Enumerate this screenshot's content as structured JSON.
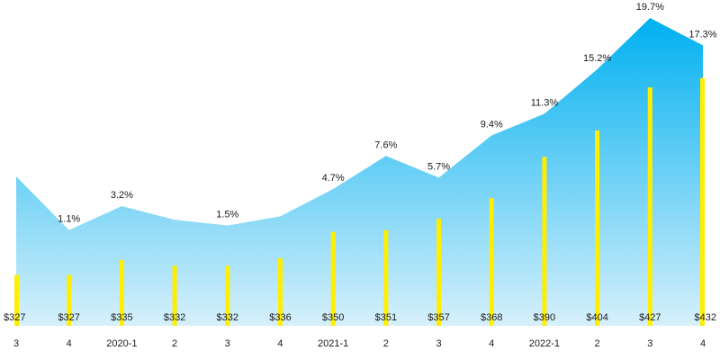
{
  "chart_data": {
    "type": "bar",
    "categories": [
      "3",
      "4",
      "2020-1",
      "2",
      "3",
      "4",
      "2021-1",
      "2",
      "3",
      "4",
      "2022-1",
      "2",
      "3",
      "4"
    ],
    "series": [
      {
        "type": "bar",
        "values": [
          327,
          327,
          335,
          332,
          332,
          336,
          350,
          351,
          357,
          368,
          390,
          404,
          427,
          432
        ],
        "value_labels": [
          "$327",
          "$327",
          "$335",
          "$332",
          "$332",
          "$336",
          "$350",
          "$351",
          "$357",
          "$368",
          "$390",
          "$404",
          "$427",
          "$432"
        ],
        "color": "#ffee00"
      },
      {
        "type": "area",
        "values": [
          null,
          1.1,
          3.2,
          null,
          1.5,
          null,
          4.7,
          7.6,
          5.7,
          9.4,
          11.3,
          15.2,
          19.7,
          17.3
        ],
        "value_labels": [
          "",
          "1.1%",
          "3.2%",
          "",
          "1.5%",
          "",
          "4.7%",
          "7.6%",
          "5.7%",
          "9.4%",
          "11.3%",
          "15.2%",
          "19.7%",
          "17.3%"
        ],
        "color_top": "#00b0f0",
        "color_bottom": "#d6f0fb"
      }
    ],
    "bar_ylim": [
      300,
      440
    ],
    "area_ylim": [
      -7.3,
      19.7
    ],
    "grid": false,
    "legend": "none"
  }
}
